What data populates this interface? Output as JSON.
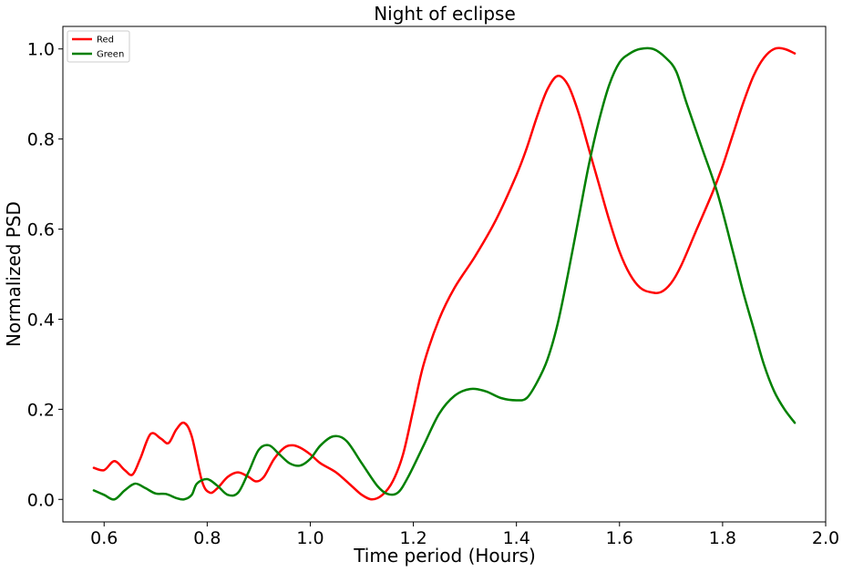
{
  "chart_data": {
    "type": "line",
    "title": "Night of eclipse",
    "xlabel": "Time period (Hours)",
    "ylabel": "Normalized PSD",
    "xlim": [
      0.52,
      2.0
    ],
    "ylim": [
      -0.05,
      1.05
    ],
    "xticks": [
      "0.6",
      "0.8",
      "1.0",
      "1.2",
      "1.4",
      "1.6",
      "1.8",
      "2.0"
    ],
    "yticks": [
      "0.0",
      "0.2",
      "0.4",
      "0.6",
      "0.8",
      "1.0"
    ],
    "legend_position": "top-left",
    "grid": false,
    "series": [
      {
        "name": "Red",
        "color": "#ff0000",
        "points": [
          [
            0.58,
            0.07
          ],
          [
            0.6,
            0.065
          ],
          [
            0.62,
            0.085
          ],
          [
            0.64,
            0.065
          ],
          [
            0.655,
            0.055
          ],
          [
            0.67,
            0.09
          ],
          [
            0.69,
            0.145
          ],
          [
            0.71,
            0.135
          ],
          [
            0.725,
            0.125
          ],
          [
            0.74,
            0.155
          ],
          [
            0.755,
            0.17
          ],
          [
            0.77,
            0.14
          ],
          [
            0.79,
            0.04
          ],
          [
            0.805,
            0.015
          ],
          [
            0.82,
            0.025
          ],
          [
            0.84,
            0.05
          ],
          [
            0.86,
            0.06
          ],
          [
            0.88,
            0.05
          ],
          [
            0.895,
            0.04
          ],
          [
            0.91,
            0.05
          ],
          [
            0.93,
            0.09
          ],
          [
            0.95,
            0.115
          ],
          [
            0.965,
            0.12
          ],
          [
            0.98,
            0.115
          ],
          [
            1.0,
            0.1
          ],
          [
            1.02,
            0.08
          ],
          [
            1.05,
            0.06
          ],
          [
            1.08,
            0.03
          ],
          [
            1.1,
            0.01
          ],
          [
            1.12,
            0.0
          ],
          [
            1.14,
            0.01
          ],
          [
            1.16,
            0.04
          ],
          [
            1.18,
            0.1
          ],
          [
            1.2,
            0.2
          ],
          [
            1.22,
            0.3
          ],
          [
            1.25,
            0.4
          ],
          [
            1.28,
            0.47
          ],
          [
            1.32,
            0.54
          ],
          [
            1.36,
            0.62
          ],
          [
            1.4,
            0.72
          ],
          [
            1.42,
            0.78
          ],
          [
            1.44,
            0.85
          ],
          [
            1.46,
            0.91
          ],
          [
            1.48,
            0.94
          ],
          [
            1.5,
            0.92
          ],
          [
            1.52,
            0.86
          ],
          [
            1.54,
            0.78
          ],
          [
            1.56,
            0.7
          ],
          [
            1.58,
            0.62
          ],
          [
            1.6,
            0.55
          ],
          [
            1.62,
            0.5
          ],
          [
            1.64,
            0.47
          ],
          [
            1.66,
            0.46
          ],
          [
            1.68,
            0.46
          ],
          [
            1.7,
            0.48
          ],
          [
            1.72,
            0.52
          ],
          [
            1.75,
            0.6
          ],
          [
            1.78,
            0.68
          ],
          [
            1.8,
            0.74
          ],
          [
            1.82,
            0.81
          ],
          [
            1.84,
            0.88
          ],
          [
            1.86,
            0.94
          ],
          [
            1.88,
            0.98
          ],
          [
            1.9,
            1.0
          ],
          [
            1.92,
            1.0
          ],
          [
            1.94,
            0.99
          ]
        ]
      },
      {
        "name": "Green",
        "color": "#008000",
        "points": [
          [
            0.58,
            0.02
          ],
          [
            0.6,
            0.01
          ],
          [
            0.62,
            0.0
          ],
          [
            0.64,
            0.02
          ],
          [
            0.66,
            0.035
          ],
          [
            0.68,
            0.025
          ],
          [
            0.7,
            0.013
          ],
          [
            0.72,
            0.012
          ],
          [
            0.74,
            0.003
          ],
          [
            0.755,
            0.0
          ],
          [
            0.77,
            0.01
          ],
          [
            0.78,
            0.035
          ],
          [
            0.8,
            0.045
          ],
          [
            0.82,
            0.03
          ],
          [
            0.84,
            0.01
          ],
          [
            0.86,
            0.015
          ],
          [
            0.88,
            0.06
          ],
          [
            0.9,
            0.11
          ],
          [
            0.92,
            0.12
          ],
          [
            0.94,
            0.1
          ],
          [
            0.96,
            0.08
          ],
          [
            0.98,
            0.075
          ],
          [
            1.0,
            0.09
          ],
          [
            1.02,
            0.12
          ],
          [
            1.045,
            0.14
          ],
          [
            1.07,
            0.13
          ],
          [
            1.1,
            0.08
          ],
          [
            1.13,
            0.03
          ],
          [
            1.15,
            0.012
          ],
          [
            1.17,
            0.015
          ],
          [
            1.19,
            0.05
          ],
          [
            1.22,
            0.12
          ],
          [
            1.25,
            0.19
          ],
          [
            1.28,
            0.23
          ],
          [
            1.31,
            0.245
          ],
          [
            1.34,
            0.24
          ],
          [
            1.37,
            0.225
          ],
          [
            1.4,
            0.22
          ],
          [
            1.42,
            0.225
          ],
          [
            1.44,
            0.26
          ],
          [
            1.46,
            0.31
          ],
          [
            1.48,
            0.39
          ],
          [
            1.5,
            0.5
          ],
          [
            1.52,
            0.62
          ],
          [
            1.54,
            0.74
          ],
          [
            1.56,
            0.84
          ],
          [
            1.58,
            0.92
          ],
          [
            1.6,
            0.97
          ],
          [
            1.62,
            0.99
          ],
          [
            1.64,
            1.0
          ],
          [
            1.665,
            1.0
          ],
          [
            1.69,
            0.98
          ],
          [
            1.71,
            0.95
          ],
          [
            1.73,
            0.88
          ],
          [
            1.76,
            0.78
          ],
          [
            1.79,
            0.68
          ],
          [
            1.82,
            0.55
          ],
          [
            1.84,
            0.46
          ],
          [
            1.86,
            0.38
          ],
          [
            1.88,
            0.3
          ],
          [
            1.9,
            0.24
          ],
          [
            1.92,
            0.2
          ],
          [
            1.94,
            0.17
          ]
        ]
      }
    ]
  }
}
